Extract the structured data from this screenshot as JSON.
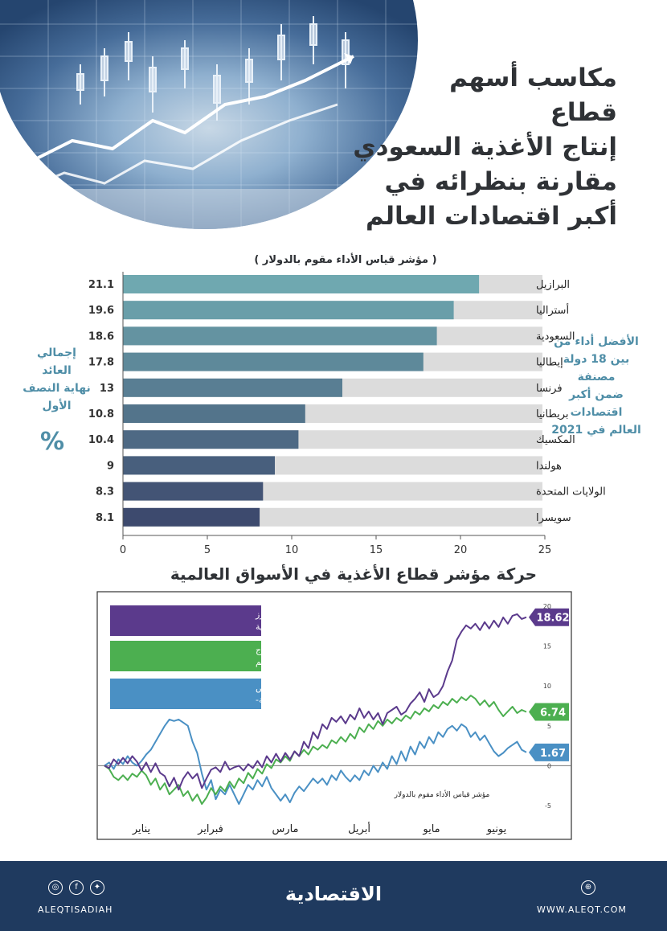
{
  "title_lines": [
    "مكاسب أسهم",
    "قطاع",
    "إنتاج الأغذية السعودي",
    "مقارنة بنظرائه في",
    "أكبر اقتصادات العالم"
  ],
  "left_note_lines": [
    "إجمالي",
    "العائد",
    "نهاية النصف",
    "الأول"
  ],
  "left_note_percent": "%",
  "right_note_lines": [
    "الأفضل أداء من",
    "بين 18 دولة",
    "مصنفة",
    "ضمن أكبر",
    "اقتصادات",
    "العالم في 2021"
  ],
  "footer": {
    "handle": "ALEQTISADIAH",
    "logo_text": "الاقتصادية",
    "website": "WWW.ALEQT.COM",
    "social_icons": [
      "instagram-icon",
      "facebook-icon",
      "twitter-icon"
    ],
    "web_icon": "globe-icon"
  },
  "colors": {
    "bar_bg": "#dcdcdc",
    "bar_top": "#6fa8b0",
    "bar_bottom": "#3d4a6e",
    "accent": "#4f8ea7",
    "footer": "#1f3a5f"
  },
  "chart_data": [
    {
      "type": "bar",
      "orientation": "horizontal",
      "subtitle": "( مؤشر قياس الأداء مقوم بالدولار )",
      "categories": [
        "البرازيل",
        "أستراليا",
        "السعودية",
        "إيطاليا",
        "فرنسا",
        "بريطانيا",
        "المكسيك",
        "هولندا",
        "الولايات المتحدة",
        "سويسرا"
      ],
      "values": [
        21.1,
        19.6,
        18.6,
        17.8,
        13,
        10.8,
        10.4,
        9,
        8.3,
        8.1
      ],
      "value_labels": [
        "21.1",
        "19.6",
        "18.6",
        "17.8",
        "13",
        "10.8",
        "10.4",
        "9",
        "8.3",
        "8.1"
      ],
      "xlim": [
        0,
        25
      ],
      "xticks": [
        "0",
        "5",
        "10",
        "15",
        "20",
        "25"
      ]
    },
    {
      "type": "line",
      "title": "حركة مؤشر قطاع الأغذية في الأسواق العالمية",
      "axis_note": "مؤشر قياس الأداء مقوم بالدولار",
      "x_labels": [
        "يناير",
        "فبراير",
        "مارس",
        "أبريل",
        "مايو",
        "يونيو"
      ],
      "ylim": [
        -5,
        20
      ],
      "yticks": [
        "20",
        "15",
        "10",
        "5",
        "0",
        "-5"
      ],
      "series": [
        {
          "name": "مؤشر ستاندرد آند بورز للأغذية والمشروبات السعودية",
          "name_lines": [
            "مؤشر ستاندرد آند بورز",
            "للأغذية والمشروبات السعودية"
          ],
          "color": "#5b3a8c",
          "end_label": "18.62",
          "values": [
            0,
            -0.3,
            0.8,
            0.2,
            1.0,
            0.3,
            1.2,
            0.5,
            -0.6,
            0.4,
            -0.8,
            0.3,
            -0.9,
            -1.3,
            -2.6,
            -1.5,
            -3.0,
            -1.6,
            -0.8,
            -1.6,
            -1.0,
            -2.8,
            -1.6,
            -0.5,
            -0.2,
            -0.8,
            0.5,
            -0.5,
            -0.2,
            0.0,
            -0.6,
            0.2,
            -0.3,
            0.6,
            -0.2,
            1.2,
            0.4,
            1.5,
            0.5,
            1.6,
            0.8,
            1.8,
            1.2,
            3.0,
            2.2,
            4.2,
            3.4,
            5.2,
            4.6,
            6.0,
            5.5,
            6.2,
            5.3,
            6.4,
            5.8,
            7.2,
            6.0,
            6.8,
            5.8,
            6.6,
            5.2,
            6.6,
            7.0,
            7.4,
            6.4,
            6.8,
            7.8,
            8.4,
            9.2,
            8.0,
            9.6,
            8.6,
            9.0,
            10.0,
            11.8,
            13.2,
            15.8,
            16.8,
            17.6,
            17.2,
            17.8,
            17.0,
            18.0,
            17.2,
            18.2,
            17.4,
            18.6,
            17.8,
            18.8,
            19.0,
            18.4,
            18.62
          ]
        },
        {
          "name": "مؤشر (إم إس سي آي) الخاص بإنتاج الأغذية لأسواق جميع دول العالم",
          "name_lines": [
            "مؤشر (إم إس سي آي) الخاص بإنتاج",
            "الأغذية لأسواق جميع دول العالم"
          ],
          "color": "#4caf50",
          "end_label": "6.74",
          "values": [
            0,
            -0.4,
            -1.4,
            -1.8,
            -1.2,
            -1.8,
            -1.0,
            -1.4,
            -0.6,
            -1.2,
            -2.4,
            -1.6,
            -3.0,
            -2.2,
            -3.6,
            -3.0,
            -2.4,
            -3.8,
            -3.2,
            -4.4,
            -3.6,
            -4.8,
            -4.0,
            -2.8,
            -3.6,
            -2.6,
            -3.2,
            -2.0,
            -2.8,
            -1.6,
            -2.2,
            -0.9,
            -1.6,
            -0.4,
            -1.0,
            0.2,
            -0.3,
            0.8,
            0.4,
            1.2,
            0.6,
            1.8,
            1.2,
            2.0,
            1.4,
            2.4,
            2.0,
            2.6,
            2.2,
            3.2,
            2.8,
            3.6,
            3.0,
            4.0,
            3.4,
            4.8,
            4.2,
            5.2,
            4.6,
            5.6,
            5.0,
            5.8,
            5.3,
            6.0,
            5.6,
            6.3,
            5.9,
            6.8,
            6.4,
            7.2,
            6.8,
            7.6,
            7.2,
            8.0,
            7.6,
            8.4,
            7.9,
            8.6,
            8.2,
            8.8,
            8.4,
            7.6,
            8.2,
            7.4,
            8.0,
            7.0,
            6.2,
            6.8,
            7.4,
            6.6,
            7.0,
            6.74
          ]
        },
        {
          "name": "مؤشر (إم إس سي اي) الخاص بالأغذية والمشروبات-الأسواق الناشئة-",
          "name_lines": [
            "مؤشر  (إم إس سي اي) الخاص",
            "بالأغذية والمشروبات-الأسواق الناشئة-"
          ],
          "color": "#4a90c4",
          "end_label": "1.67",
          "values": [
            0,
            0.4,
            -0.4,
            0.8,
            0.2,
            1.2,
            0.4,
            0.0,
            0.6,
            1.4,
            2.0,
            3.0,
            4.0,
            5.0,
            5.8,
            5.6,
            5.8,
            5.4,
            5.0,
            3.0,
            1.6,
            -1.0,
            -3.0,
            -1.8,
            -4.2,
            -3.0,
            -3.6,
            -2.4,
            -3.6,
            -4.8,
            -3.6,
            -2.4,
            -3.0,
            -1.8,
            -2.6,
            -1.4,
            -2.8,
            -3.6,
            -4.4,
            -3.6,
            -4.6,
            -3.4,
            -2.6,
            -3.2,
            -2.4,
            -1.6,
            -2.2,
            -1.6,
            -2.4,
            -1.2,
            -1.8,
            -0.6,
            -1.4,
            -2.0,
            -1.2,
            -1.8,
            -0.6,
            -1.2,
            0.0,
            -0.8,
            0.4,
            -0.4,
            1.2,
            0.2,
            1.8,
            0.6,
            2.4,
            1.4,
            3.0,
            2.2,
            3.6,
            2.8,
            4.2,
            3.6,
            4.6,
            5.0,
            4.4,
            5.2,
            4.8,
            3.6,
            4.2,
            3.2,
            3.8,
            2.8,
            1.8,
            1.2,
            1.6,
            2.2,
            2.6,
            3.0,
            2.0,
            1.67
          ]
        }
      ]
    }
  ]
}
